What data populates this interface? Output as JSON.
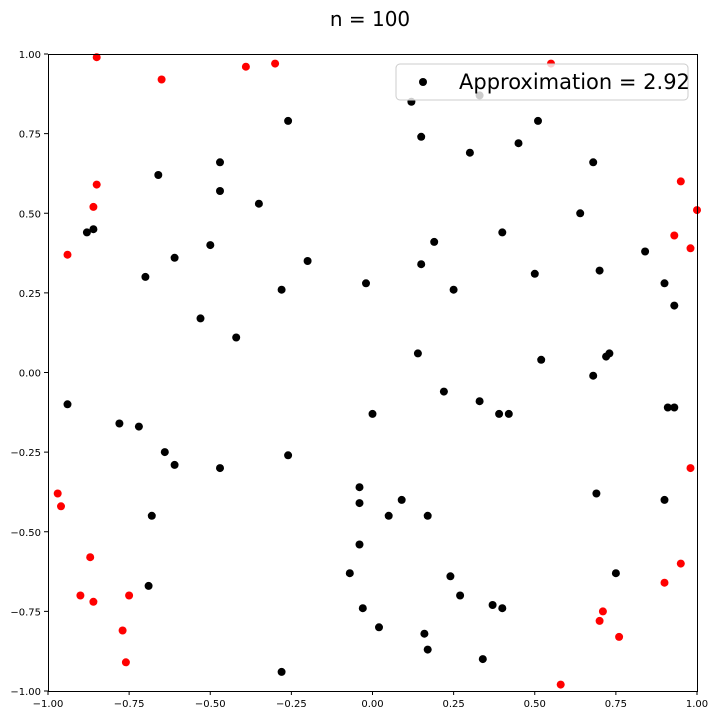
{
  "chart_data": {
    "type": "scatter",
    "title": "n = 100",
    "xlabel": "",
    "ylabel": "",
    "xlim": [
      -1.0,
      1.0
    ],
    "ylim": [
      -1.0,
      1.0
    ],
    "x_ticks": [
      "−1.00",
      "−0.75",
      "−0.50",
      "−0.25",
      "0.00",
      "0.25",
      "0.50",
      "0.75",
      "1.00"
    ],
    "y_ticks": [
      "1.00",
      "0.75",
      "0.50",
      "0.25",
      "0.00",
      "−0.25",
      "−0.50",
      "−0.75",
      "−1.00"
    ],
    "x_tick_values": [
      -1.0,
      -0.75,
      -0.5,
      -0.25,
      0.0,
      0.25,
      0.5,
      0.75,
      1.0
    ],
    "y_tick_values": [
      1.0,
      0.75,
      0.5,
      0.25,
      0.0,
      -0.25,
      -0.5,
      -0.75,
      -1.0
    ],
    "grid": false,
    "legend_position": "upper right",
    "legend_label": "Approximation = 2.92",
    "series": [
      {
        "name": "Approximation = 2.92",
        "color": "#000000",
        "points": [
          [
            0.12,
            0.85
          ],
          [
            0.33,
            0.87
          ],
          [
            -0.26,
            0.79
          ],
          [
            0.51,
            0.79
          ],
          [
            0.15,
            0.74
          ],
          [
            0.45,
            0.72
          ],
          [
            0.3,
            0.69
          ],
          [
            -0.47,
            0.66
          ],
          [
            0.68,
            0.66
          ],
          [
            -0.66,
            0.62
          ],
          [
            -0.47,
            0.57
          ],
          [
            -0.35,
            0.53
          ],
          [
            0.64,
            0.5
          ],
          [
            -0.88,
            0.44
          ],
          [
            -0.86,
            0.45
          ],
          [
            0.4,
            0.44
          ],
          [
            -0.5,
            0.4
          ],
          [
            0.19,
            0.41
          ],
          [
            -0.61,
            0.36
          ],
          [
            -0.2,
            0.35
          ],
          [
            0.15,
            0.34
          ],
          [
            0.7,
            0.32
          ],
          [
            0.5,
            0.31
          ],
          [
            -0.7,
            0.3
          ],
          [
            0.84,
            0.38
          ],
          [
            -0.02,
            0.28
          ],
          [
            0.9,
            0.28
          ],
          [
            -0.28,
            0.26
          ],
          [
            0.25,
            0.26
          ],
          [
            0.93,
            0.21
          ],
          [
            -0.53,
            0.17
          ],
          [
            -0.42,
            0.11
          ],
          [
            0.14,
            0.06
          ],
          [
            0.52,
            0.04
          ],
          [
            0.73,
            0.06
          ],
          [
            0.72,
            0.05
          ],
          [
            0.68,
            -0.01
          ],
          [
            0.22,
            -0.06
          ],
          [
            -0.94,
            -0.1
          ],
          [
            0.33,
            -0.09
          ],
          [
            0.0,
            -0.13
          ],
          [
            0.39,
            -0.13
          ],
          [
            0.42,
            -0.13
          ],
          [
            0.91,
            -0.11
          ],
          [
            0.93,
            -0.11
          ],
          [
            -0.78,
            -0.16
          ],
          [
            -0.72,
            -0.17
          ],
          [
            -0.64,
            -0.25
          ],
          [
            -0.26,
            -0.26
          ],
          [
            -0.61,
            -0.29
          ],
          [
            -0.47,
            -0.3
          ],
          [
            -0.04,
            -0.36
          ],
          [
            0.69,
            -0.38
          ],
          [
            -0.04,
            -0.41
          ],
          [
            0.09,
            -0.4
          ],
          [
            0.9,
            -0.4
          ],
          [
            0.05,
            -0.45
          ],
          [
            0.17,
            -0.45
          ],
          [
            -0.68,
            -0.45
          ],
          [
            -0.04,
            -0.54
          ],
          [
            -0.07,
            -0.63
          ],
          [
            0.24,
            -0.64
          ],
          [
            0.75,
            -0.63
          ],
          [
            -0.69,
            -0.67
          ],
          [
            0.27,
            -0.7
          ],
          [
            0.37,
            -0.73
          ],
          [
            0.4,
            -0.74
          ],
          [
            -0.03,
            -0.74
          ],
          [
            0.02,
            -0.8
          ],
          [
            0.16,
            -0.82
          ],
          [
            0.17,
            -0.87
          ],
          [
            0.34,
            -0.9
          ],
          [
            -0.28,
            -0.94
          ]
        ]
      },
      {
        "name": "",
        "color": "#ff0000",
        "points": [
          [
            -0.85,
            0.99
          ],
          [
            -0.65,
            0.92
          ],
          [
            -0.39,
            0.96
          ],
          [
            -0.3,
            0.97
          ],
          [
            0.55,
            0.97
          ],
          [
            -0.85,
            0.59
          ],
          [
            -0.86,
            0.52
          ],
          [
            -0.94,
            0.37
          ],
          [
            0.95,
            0.6
          ],
          [
            1.0,
            0.51
          ],
          [
            0.93,
            0.43
          ],
          [
            0.98,
            0.39
          ],
          [
            0.98,
            -0.3
          ],
          [
            -0.97,
            -0.38
          ],
          [
            -0.96,
            -0.42
          ],
          [
            -0.87,
            -0.58
          ],
          [
            -0.9,
            -0.7
          ],
          [
            -0.86,
            -0.72
          ],
          [
            -0.75,
            -0.7
          ],
          [
            0.95,
            -0.6
          ],
          [
            0.9,
            -0.66
          ],
          [
            0.71,
            -0.75
          ],
          [
            0.7,
            -0.78
          ],
          [
            0.76,
            -0.83
          ],
          [
            -0.77,
            -0.81
          ],
          [
            -0.76,
            -0.91
          ],
          [
            0.58,
            -0.98
          ]
        ]
      }
    ]
  }
}
